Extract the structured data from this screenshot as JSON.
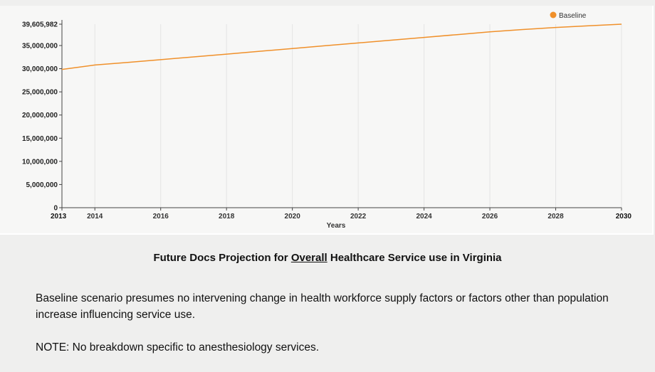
{
  "chart_data": {
    "type": "line",
    "title": "",
    "xlabel": "Years",
    "ylabel": "",
    "x": [
      2013,
      2014,
      2015,
      2016,
      2017,
      2018,
      2019,
      2020,
      2021,
      2022,
      2023,
      2024,
      2025,
      2026,
      2027,
      2028,
      2029,
      2030
    ],
    "series": [
      {
        "name": "Baseline",
        "color": "#f0902a",
        "values": [
          29850000,
          30800000,
          31350000,
          31950000,
          32550000,
          33150000,
          33750000,
          34350000,
          34950000,
          35550000,
          36150000,
          36750000,
          37350000,
          37950000,
          38450000,
          38900000,
          39250000,
          39605982
        ]
      }
    ],
    "ylim": [
      0,
      39605982
    ],
    "xlim": [
      2013,
      2030
    ],
    "y_ticks": [
      0,
      5000000,
      10000000,
      15000000,
      20000000,
      25000000,
      30000000,
      35000000,
      39605982
    ],
    "y_tick_labels": [
      "0",
      "5,000,000",
      "10,000,000",
      "15,000,000",
      "20,000,000",
      "25,000,000",
      "30,000,000",
      "35,000,000",
      "39,605,982"
    ],
    "x_ticks": [
      2013,
      2014,
      2016,
      2018,
      2020,
      2022,
      2024,
      2026,
      2028,
      2030
    ],
    "x_tick_labels": [
      "2013",
      "2014",
      "2016",
      "2018",
      "2020",
      "2022",
      "2024",
      "2026",
      "2028",
      "2030"
    ],
    "grid": "vertical",
    "legend": "top-right"
  },
  "caption": {
    "before": "Future Docs Projection for ",
    "underlined": "Overall",
    "after": " Healthcare Service use in Virginia"
  },
  "notes": {
    "baseline": "Baseline scenario presumes no intervening change in health workforce supply factors or factors other than population increase influencing service use.",
    "note": "NOTE:  No breakdown specific to anesthesiology services."
  }
}
